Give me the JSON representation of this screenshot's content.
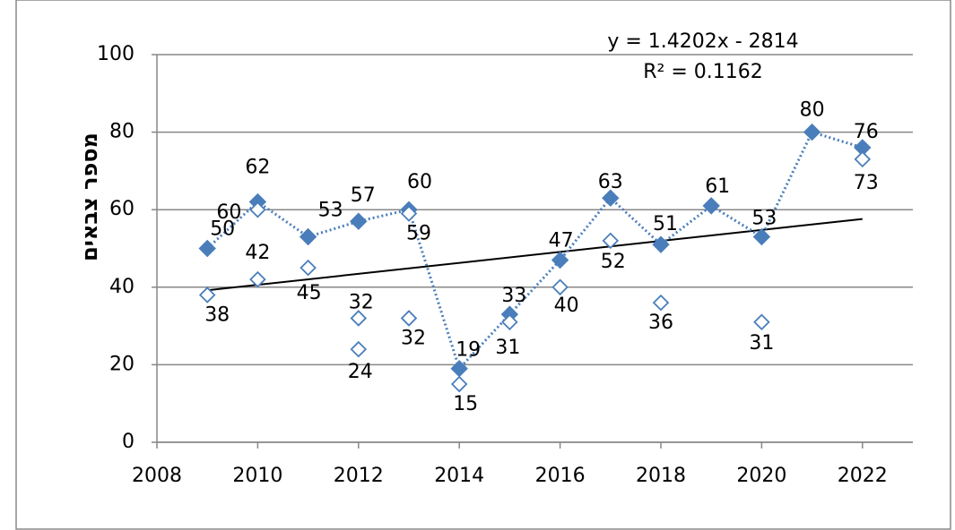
{
  "chart_data": {
    "type": "scatter",
    "y_label": "מספר צבאים",
    "annotations": [
      "y = 1.4202x - 2814",
      "R² = 0.1162"
    ],
    "xlim": [
      2008,
      2023
    ],
    "xticks": [
      2008,
      2010,
      2012,
      2014,
      2016,
      2018,
      2020,
      2022
    ],
    "ylim": [
      0,
      100
    ],
    "yticks": [
      0,
      20,
      40,
      60,
      80,
      100
    ],
    "grid": true,
    "series": [
      {
        "color": "#4a7ebb",
        "marker": "filled-diamond",
        "line": "dotted",
        "x": [
          2009,
          2010,
          2011,
          2012,
          2013,
          2014,
          2015,
          2016,
          2017,
          2018,
          2019,
          2020,
          2021,
          2022
        ],
        "values": [
          50,
          62,
          53,
          57,
          60,
          19,
          33,
          47,
          63,
          51,
          61,
          53,
          80,
          76
        ]
      },
      {
        "color": "#4a7ebb",
        "marker": "hollow-diamond",
        "x": [
          2009,
          2010,
          2010,
          2011,
          2012,
          2012,
          2013,
          2013,
          2014,
          2015,
          2016,
          2017,
          2018,
          2020,
          2022
        ],
        "values": [
          38,
          60,
          42,
          45,
          32,
          24,
          59,
          32,
          15,
          31,
          40,
          52,
          36,
          31,
          73
        ]
      }
    ],
    "trendline": {
      "color": "#000000",
      "x": [
        2009,
        2022
      ],
      "values": [
        39.2,
        57.6
      ]
    }
  }
}
